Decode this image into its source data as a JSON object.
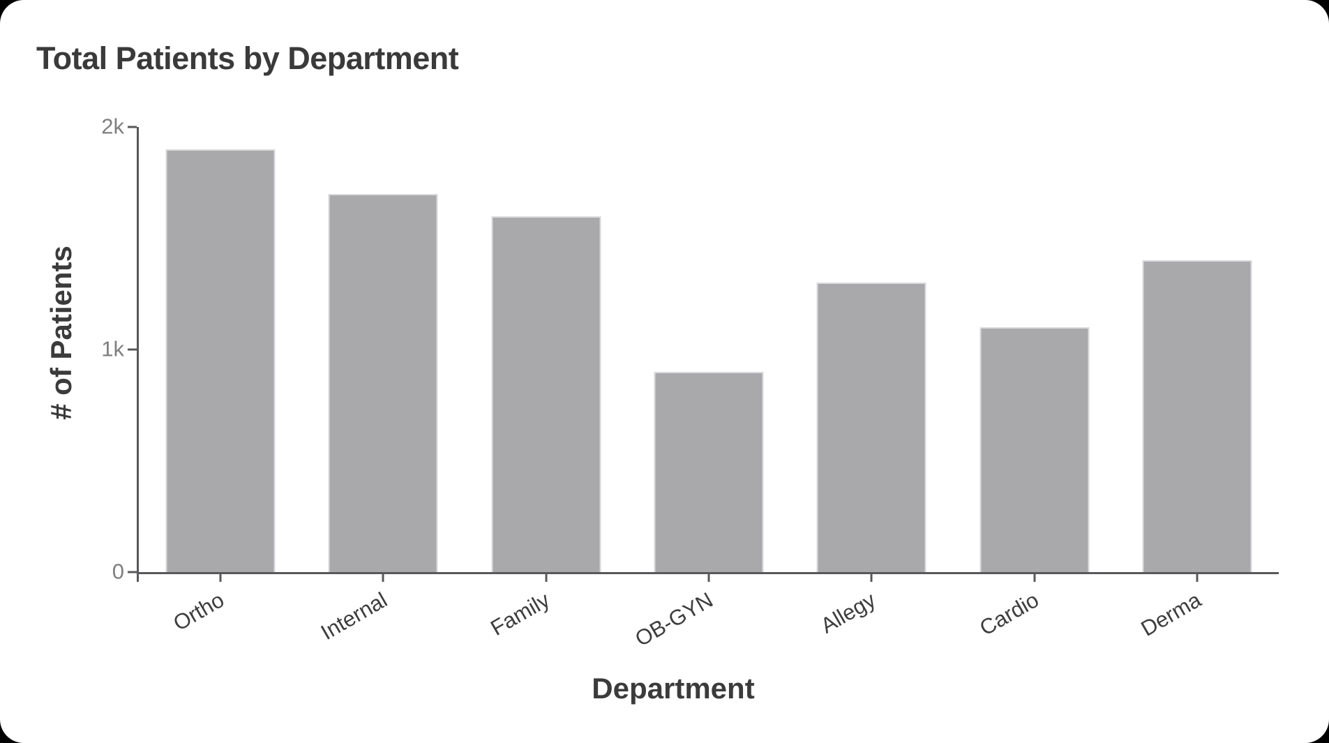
{
  "chart_data": {
    "type": "bar",
    "title": "Total Patients by Department",
    "xlabel": "Department",
    "ylabel": "# of Patients",
    "categories": [
      "Ortho",
      "Internal",
      "Family",
      "OB-GYN",
      "Allegy",
      "Cardio",
      "Derma"
    ],
    "values": [
      1900,
      1700,
      1600,
      900,
      1300,
      1100,
      1400
    ],
    "ylim": [
      0,
      2000
    ],
    "yticks": [
      {
        "value": 0,
        "label": "0"
      },
      {
        "value": 1000,
        "label": "1k"
      },
      {
        "value": 2000,
        "label": "2k"
      }
    ],
    "grid": false,
    "legend": null,
    "x_label_rotation_deg": 30,
    "colors": {
      "bar_fill": "#a9a9ab",
      "bar_edge": "#dadadc",
      "axis_line": "#58585a",
      "numeric_tick_label": "#7f7f7f",
      "category_tick_label": "#3d3d3d",
      "title_text": "#3a3a3a",
      "card_background": "#ffffff",
      "page_background": "#000000"
    }
  }
}
